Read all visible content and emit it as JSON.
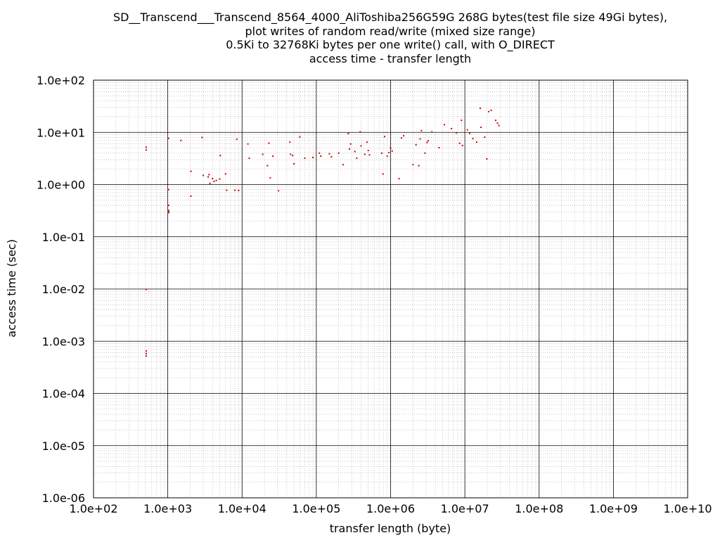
{
  "chart_data": {
    "type": "scatter",
    "title_lines": [
      "SD__Transcend___Transcend_8564_4000_AliToshiba256G59G 268G bytes(test file size 49Gi bytes),",
      "plot writes of random read/write (mixed size range)",
      "0.5Ki to 32768Ki bytes per one write() call, with O_DIRECT",
      "access time - transfer length"
    ],
    "xlabel": "transfer length (byte)",
    "ylabel": "access time (sec)",
    "x_scale": "log",
    "y_scale": "log",
    "xlim": [
      100,
      10000000000
    ],
    "ylim": [
      1e-06,
      100
    ],
    "x_ticks": [
      "1.0e+02",
      "1.0e+03",
      "1.0e+04",
      "1.0e+05",
      "1.0e+06",
      "1.0e+07",
      "1.0e+08",
      "1.0e+09",
      "1.0e+10"
    ],
    "y_ticks": [
      "1.0e+02",
      "1.0e+01",
      "1.0e+00",
      "1.0e-01",
      "1.0e-02",
      "1.0e-03",
      "1.0e-04",
      "1.0e-05",
      "1.0e-06"
    ],
    "grid": true,
    "marker_color": "#cc0000",
    "points": [
      [
        512,
        5.2
      ],
      [
        512,
        4.6
      ],
      [
        512,
        0.0098
      ],
      [
        512,
        0.00065
      ],
      [
        512,
        0.00058
      ],
      [
        512,
        0.00052
      ],
      [
        1024,
        7.7
      ],
      [
        1024,
        0.8
      ],
      [
        1024,
        0.4
      ],
      [
        1024,
        0.32
      ],
      [
        1024,
        0.3
      ],
      [
        1024,
        0.29
      ],
      [
        1500,
        7.0
      ],
      [
        2048,
        1.8
      ],
      [
        2048,
        0.6
      ],
      [
        2900,
        8.0
      ],
      [
        3000,
        1.5
      ],
      [
        3500,
        1.4
      ],
      [
        3600,
        1.55
      ],
      [
        3700,
        1.05
      ],
      [
        4000,
        1.3
      ],
      [
        4200,
        1.15
      ],
      [
        4500,
        1.2
      ],
      [
        5000,
        1.28
      ],
      [
        5100,
        3.6
      ],
      [
        6000,
        1.6
      ],
      [
        6200,
        0.78
      ],
      [
        8000,
        0.78
      ],
      [
        8500,
        7.4
      ],
      [
        9000,
        0.77
      ],
      [
        12000,
        6.0
      ],
      [
        12500,
        3.2
      ],
      [
        19000,
        3.8
      ],
      [
        22000,
        2.3
      ],
      [
        23000,
        6.2
      ],
      [
        24000,
        1.35
      ],
      [
        26000,
        3.5
      ],
      [
        31000,
        0.76
      ],
      [
        44000,
        6.5
      ],
      [
        45000,
        3.8
      ],
      [
        48000,
        3.6
      ],
      [
        50000,
        2.5
      ],
      [
        60000,
        8.2
      ],
      [
        70000,
        3.2
      ],
      [
        90000,
        3.3
      ],
      [
        110000,
        4.0
      ],
      [
        115000,
        3.5
      ],
      [
        150000,
        3.9
      ],
      [
        160000,
        3.4
      ],
      [
        200000,
        4.0
      ],
      [
        230000,
        2.4
      ],
      [
        270000,
        9.5
      ],
      [
        280000,
        4.8
      ],
      [
        290000,
        6.0
      ],
      [
        330000,
        4.3
      ],
      [
        350000,
        3.2
      ],
      [
        390000,
        10.2
      ],
      [
        400000,
        5.5
      ],
      [
        450000,
        3.8
      ],
      [
        480000,
        6.5
      ],
      [
        500000,
        4.5
      ],
      [
        520000,
        3.7
      ],
      [
        760000,
        4.0
      ],
      [
        790000,
        1.6
      ],
      [
        830000,
        8.3
      ],
      [
        900000,
        3.5
      ],
      [
        950000,
        4.1
      ],
      [
        1000000,
        5.0
      ],
      [
        1050000,
        4.4
      ],
      [
        1300000,
        1.3
      ],
      [
        1400000,
        7.8
      ],
      [
        1500000,
        8.6
      ],
      [
        2000000,
        2.4
      ],
      [
        2200000,
        5.8
      ],
      [
        2400000,
        2.3
      ],
      [
        2500000,
        7.5
      ],
      [
        2600000,
        10.8
      ],
      [
        2900000,
        4.0
      ],
      [
        3100000,
        6.4
      ],
      [
        3200000,
        6.9
      ],
      [
        3600000,
        10.2
      ],
      [
        4500000,
        5.1
      ],
      [
        5300000,
        14.0
      ],
      [
        6600000,
        11.8
      ],
      [
        7700000,
        9.8
      ],
      [
        8500000,
        6.2
      ],
      [
        9000000,
        17.0
      ],
      [
        9300000,
        5.6
      ],
      [
        10800000,
        11.2
      ],
      [
        11600000,
        9.6
      ],
      [
        12800000,
        7.6
      ],
      [
        14400000,
        6.5
      ],
      [
        16100000,
        29.0
      ],
      [
        16500000,
        12.5
      ],
      [
        18500000,
        8.1
      ],
      [
        19800000,
        3.1
      ],
      [
        21000000,
        25.0
      ],
      [
        22600000,
        26.5
      ],
      [
        26000000,
        17.0
      ],
      [
        27500000,
        15.0
      ],
      [
        28800000,
        13.5
      ]
    ]
  }
}
